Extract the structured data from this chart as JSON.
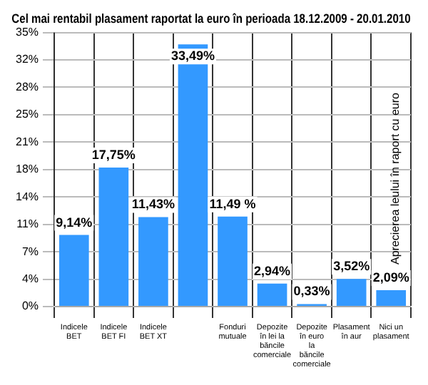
{
  "chart_data": {
    "type": "bar",
    "title": "Cel mai rentabil plasament raportat la euro în perioada 18.12.2009 - 20.01.2010",
    "categories": [
      "Indicele BET",
      "Indicele BET FI",
      "Indicele BET XT",
      null,
      "Fonduri mutuale",
      "Depozite în lei la băncile comerciale",
      "Depozite în euro la băncile comerciale",
      "Plasament în aur",
      "Nici un plasament"
    ],
    "values": [
      9.14,
      17.75,
      11.43,
      33.49,
      11.49,
      2.94,
      0.33,
      3.52,
      2.09
    ],
    "value_labels": [
      "9,14%",
      "17,75%",
      "11,43%",
      "33,49%",
      "11,49 %",
      "2,94%",
      "0,33%",
      "3,52%",
      "2,09%"
    ],
    "color": "#3399ff",
    "ylim": [
      0,
      35
    ],
    "yticks": [
      {
        "value": 0,
        "label": "0%"
      },
      {
        "value": 3.5,
        "label": "4%"
      },
      {
        "value": 7,
        "label": "7%"
      },
      {
        "value": 10.5,
        "label": "11%"
      },
      {
        "value": 14,
        "label": "14%"
      },
      {
        "value": 17.5,
        "label": "18%"
      },
      {
        "value": 21,
        "label": "21%"
      },
      {
        "value": 24.5,
        "label": "25%"
      },
      {
        "value": 28,
        "label": "28%"
      },
      {
        "value": 31.5,
        "label": "32%"
      },
      {
        "value": 35,
        "label": "35%"
      }
    ],
    "grid": true,
    "annotations": [
      "Aprecierea leului în raport cu euro"
    ]
  }
}
